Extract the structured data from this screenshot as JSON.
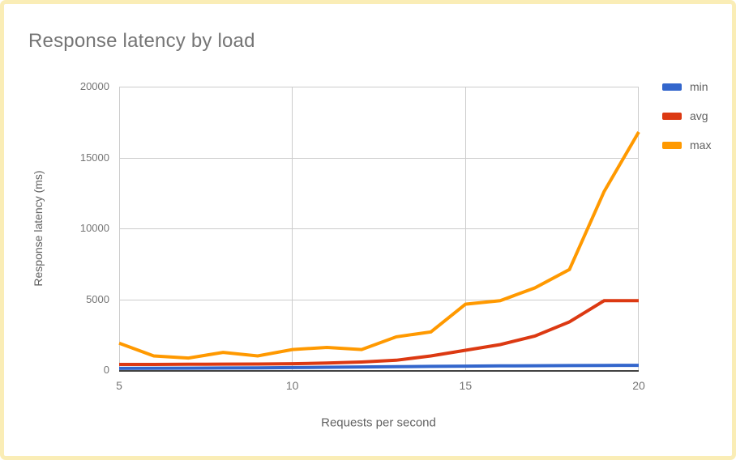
{
  "frame": {
    "border_color": "#FAEDB6",
    "background_color": "#ffffff"
  },
  "chart_data": {
    "type": "line",
    "title": "Response latency by load",
    "xlabel": "Requests per second",
    "ylabel": "Response latency (ms)",
    "x": [
      5,
      6,
      7,
      8,
      9,
      10,
      11,
      12,
      13,
      14,
      15,
      16,
      17,
      18,
      19,
      20
    ],
    "series": [
      {
        "name": "min",
        "color": "#3366CC",
        "values": [
          120,
          130,
          140,
          150,
          160,
          180,
          200,
          220,
          240,
          260,
          280,
          300,
          310,
          320,
          330,
          340
        ]
      },
      {
        "name": "avg",
        "color": "#DC3912",
        "values": [
          400,
          400,
          410,
          420,
          430,
          450,
          500,
          570,
          700,
          1000,
          1400,
          1800,
          2400,
          3400,
          4900,
          4900
        ]
      },
      {
        "name": "max",
        "color": "#FF9900",
        "values": [
          1900,
          1000,
          850,
          1250,
          1000,
          1450,
          1600,
          1450,
          2350,
          2700,
          4650,
          4900,
          5800,
          7100,
          12600,
          16800
        ]
      }
    ],
    "xlim": [
      5,
      20
    ],
    "ylim": [
      0,
      20000
    ],
    "xticks": [
      "5",
      "10",
      "15",
      "20"
    ],
    "yticks": [
      "0",
      "5000",
      "10000",
      "15000",
      "20000"
    ],
    "grid": true,
    "legend_position": "right",
    "style": {
      "title_color": "#757575",
      "tick_label_color": "#757575",
      "axis_title_color": "#616161",
      "gridline_color": "#cccccc",
      "axis_line_color": "#424242",
      "line_width": 4
    }
  }
}
